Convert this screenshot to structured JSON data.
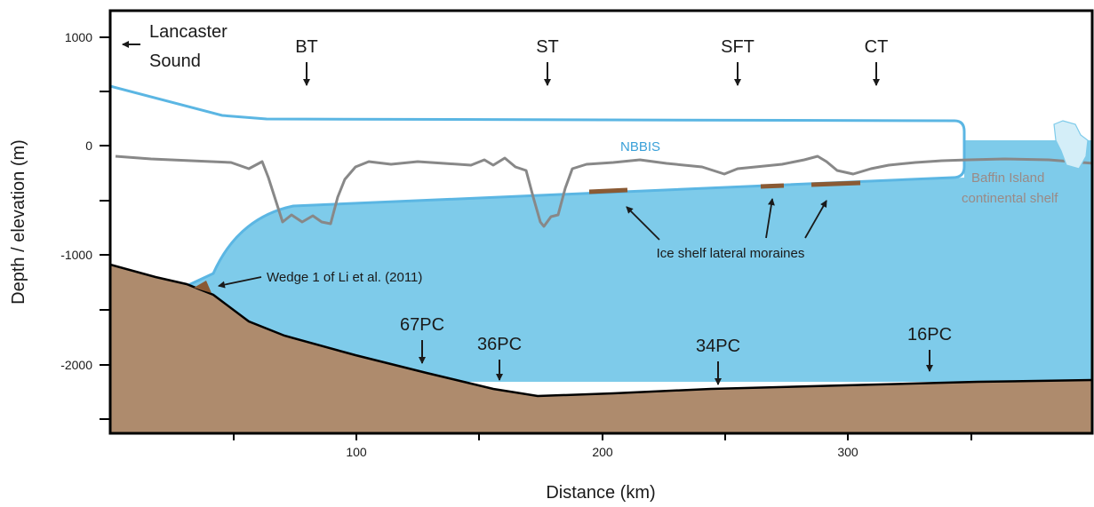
{
  "colors": {
    "water": "#7ecbea",
    "ice_outline": "#5bb6e3",
    "sediment": "#ae8b6d",
    "profile_line": "#888888",
    "moraine": "#8a5a34",
    "iceberg": "#d4eef8",
    "shelf_label": "#9a8a86",
    "nbbis_label": "#3aa0d8"
  },
  "diagram": {
    "x_axis": {
      "title": "Distance (km)",
      "ticks": [
        "100",
        "200",
        "300"
      ]
    },
    "y_axis": {
      "title": "Depth / elevation (m)",
      "ticks": [
        "1000",
        "0",
        "-1000",
        "-2000"
      ]
    },
    "direction_label": {
      "line1": "Lancaster",
      "line2": "Sound"
    },
    "troughs": [
      "BT",
      "ST",
      "SFT",
      "CT"
    ],
    "cores": [
      "67PC",
      "36PC",
      "34PC",
      "16PC"
    ],
    "ice_shelf_label": "NBBIS",
    "moraines_label": "Ice shelf lateral moraines",
    "wedge_label": "Wedge 1 of Li et al. (2011)",
    "shelf_label": {
      "line1": "Baffin Island",
      "line2": "continental shelf"
    }
  }
}
